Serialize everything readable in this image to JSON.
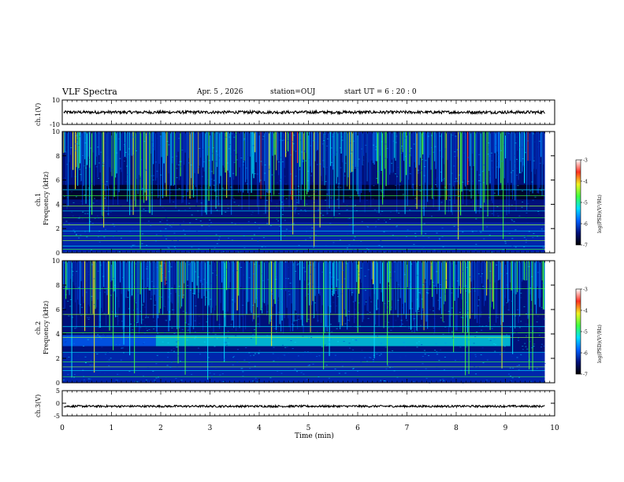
{
  "header": {
    "title": "VLF Spectra",
    "date": "Apr. 5  , 2026",
    "station": "station=OUJ",
    "start": "start  UT =   6 : 20 : 0"
  },
  "panels": {
    "ch1_label": "ch.1(V)",
    "ch2_label": "ch.1\nFrequency (kHz)",
    "ch2_label_a": "ch.1",
    "ch2_label_b": "Frequency (kHz)",
    "ch3_label_a": "ch.2",
    "ch3_label_b": "Frequency (kHz)",
    "ch4_label": "ch.3(V)",
    "colorbar_label": "log(PSD)(V²/Hz)"
  },
  "colors": {
    "spec_bg": "#00107a",
    "spec_dark": "#000020",
    "accent_cyan": "#00e0ff",
    "accent_green": "#40ff40",
    "accent_yellow": "#f0f020",
    "accent_red": "#ff3020"
  },
  "chart_data": [
    {
      "type": "line",
      "name": "ch1-waveform",
      "ylabel": "ch.1(V)",
      "ylim": [
        -10,
        10
      ],
      "yticks": [
        "10",
        "-10"
      ],
      "x_range_min": [
        0,
        10
      ],
      "data_end_min": 9.8,
      "mean_level_v": 0,
      "noise_amplitude_v": 1.2
    },
    {
      "type": "heatmap",
      "name": "ch1-spectrogram",
      "ylabel": "ch.1 Frequency (kHz)",
      "ylim": [
        0,
        10
      ],
      "yticks": [
        "0",
        "2",
        "4",
        "6",
        "8",
        "10"
      ],
      "x_range_min": [
        0,
        10
      ],
      "data_end_min": 9.8,
      "colorbar": {
        "label": "log(PSD)(V²/Hz)",
        "range": [
          -7,
          -3
        ],
        "ticks": [
          "-3",
          "-4",
          "-5",
          "-6",
          "-7"
        ]
      },
      "features": {
        "chorus_band_khz": [
          5,
          10
        ],
        "dark_gap_khz": [
          4.4,
          5.6
        ],
        "mid_band_khz": [
          2.5,
          4.4
        ],
        "low_band_khz": [
          0,
          2.5
        ],
        "persistent_lines_khz": [
          0.3,
          0.55,
          1.0,
          1.4,
          1.8,
          2.3,
          2.9,
          3.45,
          3.85,
          4.7,
          5.2
        ]
      }
    },
    {
      "type": "heatmap",
      "name": "ch2-spectrogram",
      "ylabel": "ch.2 Frequency (kHz)",
      "ylim": [
        0,
        10
      ],
      "yticks": [
        "0",
        "2",
        "4",
        "6",
        "8",
        "10"
      ],
      "x_range_min": [
        0,
        10
      ],
      "data_end_min": 9.8,
      "colorbar": {
        "label": "log(PSD)(V²/Hz)",
        "range": [
          -7,
          -3
        ],
        "ticks": [
          "-3",
          "-4",
          "-5",
          "-6",
          "-7"
        ]
      },
      "features": {
        "chorus_band_khz": [
          5,
          10
        ],
        "hiss_band_khz": [
          3.0,
          3.9
        ],
        "hiss_band_time_min": [
          1.9,
          9.1
        ],
        "low_band_khz": [
          0,
          2.5
        ],
        "persistent_lines_khz": [
          0.5,
          1.0,
          1.3,
          1.7,
          2.5,
          3.7,
          4.1,
          4.6,
          5.6,
          7.7
        ]
      }
    },
    {
      "type": "line",
      "name": "ch3-waveform",
      "ylabel": "ch.3(V)",
      "ylim": [
        -5,
        5
      ],
      "yticks": [
        "5",
        "0",
        "-5"
      ],
      "x_range_min": [
        0,
        10
      ],
      "data_end_min": 9.8,
      "mean_level_v": -1.2,
      "noise_amplitude_v": 0.4
    }
  ],
  "xaxis": {
    "label": "Time (min)",
    "ticks": [
      "0",
      "1",
      "2",
      "3",
      "4",
      "5",
      "6",
      "7",
      "8",
      "9",
      "10"
    ]
  }
}
